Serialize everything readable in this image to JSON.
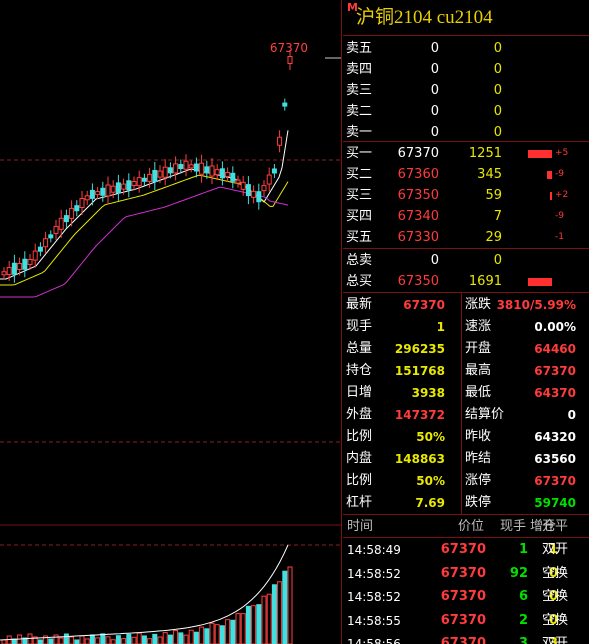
{
  "header": {
    "badge": "M",
    "title": "沪铜2104  cu2104"
  },
  "chart": {
    "high_label": "67370"
  },
  "order_book": {
    "asks": [
      {
        "label": "卖五",
        "price": "0",
        "volume": "0"
      },
      {
        "label": "卖四",
        "price": "0",
        "volume": "0"
      },
      {
        "label": "卖三",
        "price": "0",
        "volume": "0"
      },
      {
        "label": "卖二",
        "price": "0",
        "volume": "0"
      },
      {
        "label": "卖一",
        "price": "0",
        "volume": "0"
      }
    ],
    "bids": [
      {
        "label": "买一",
        "price": "67370",
        "volume": "1251",
        "change": "+5"
      },
      {
        "label": "买二",
        "price": "67360",
        "volume": "345",
        "change": "-9"
      },
      {
        "label": "买三",
        "price": "67350",
        "volume": "59",
        "change": "+2"
      },
      {
        "label": "买四",
        "price": "67340",
        "volume": "7",
        "change": "-9"
      },
      {
        "label": "买五",
        "price": "67330",
        "volume": "29",
        "change": "-1"
      }
    ],
    "totals": [
      {
        "label": "总卖",
        "price": "0",
        "volume": "0"
      },
      {
        "label": "总买",
        "price": "67350",
        "volume": "1691"
      }
    ]
  },
  "stats": {
    "rows": [
      [
        {
          "label": "最新",
          "value": "67370"
        },
        {
          "label": "涨跌",
          "value": "3810/5.99%"
        }
      ],
      [
        {
          "label": "现手",
          "value": "1"
        },
        {
          "label": "速涨",
          "value": "0.00%"
        }
      ],
      [
        {
          "label": "总量",
          "value": "296235"
        },
        {
          "label": "开盘",
          "value": "64460"
        }
      ],
      [
        {
          "label": "持仓",
          "value": "151768"
        },
        {
          "label": "最高",
          "value": "67370"
        }
      ],
      [
        {
          "label": "日增",
          "value": "3938"
        },
        {
          "label": "最低",
          "value": "64370"
        }
      ],
      [
        {
          "label": "外盘",
          "value": "147372"
        },
        {
          "label": "结算价",
          "value": "0"
        }
      ],
      [
        {
          "label": "比例",
          "value": "50%"
        },
        {
          "label": "昨收",
          "value": "64320"
        }
      ],
      [
        {
          "label": "内盘",
          "value": "148863"
        },
        {
          "label": "昨结",
          "value": "63560"
        }
      ],
      [
        {
          "label": "比例",
          "value": "50%"
        },
        {
          "label": "涨停",
          "value": "67370"
        }
      ],
      [
        {
          "label": "杠杆",
          "value": "7.69"
        },
        {
          "label": "跌停",
          "value": "59740"
        }
      ]
    ]
  },
  "trades": {
    "columns": [
      "时间",
      "价位",
      "现手",
      "增仓",
      "开平"
    ],
    "rows": [
      [
        "14:58:49",
        "67370",
        "1",
        "1",
        "双开"
      ],
      [
        "14:58:52",
        "67370",
        "92",
        "0",
        "空换"
      ],
      [
        "14:58:52",
        "67370",
        "6",
        "0",
        "空换"
      ],
      [
        "14:58:55",
        "67370",
        "2",
        "0",
        "空换"
      ],
      [
        "14:58:56",
        "67370",
        "3",
        "3",
        "双开"
      ]
    ]
  }
}
